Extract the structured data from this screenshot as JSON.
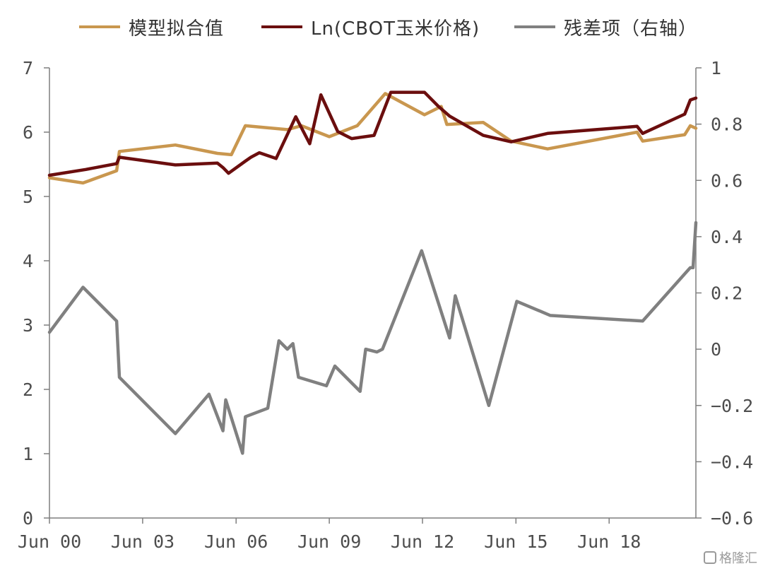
{
  "chart_data": {
    "type": "line",
    "title": "",
    "legend_position": "top",
    "x_axis": {
      "start": 2000.0,
      "end": 2023.1,
      "tick_values": [
        2000,
        2003.33,
        2006.67,
        2010,
        2013.33,
        2016.67,
        2020
      ],
      "tick_labels": [
        "Jun 00",
        "Jun 03",
        "Jun 06",
        "Jun 09",
        "Jun 12",
        "Jun 15",
        "Jun 18"
      ]
    },
    "y_left": {
      "ylim": [
        0,
        7
      ],
      "ticks": [
        "0",
        "1",
        "2",
        "3",
        "4",
        "5",
        "6",
        "7"
      ]
    },
    "y_right": {
      "ylim": [
        -0.6,
        1.0
      ],
      "ticks": [
        "-0.6",
        "-0.4",
        "-0.2",
        "0",
        "0.2",
        "0.4",
        "0.6",
        "0.8",
        "1"
      ]
    },
    "grid": false,
    "series": [
      {
        "name": "模型拟合值",
        "axis": "left",
        "color": "#c9974f",
        "x": [
          2000.0,
          2001.2,
          2002.4,
          2002.5,
          2004.5,
          2006.0,
          2006.5,
          2007.0,
          2008.5,
          2009.0,
          2010.0,
          2011.0,
          2012.0,
          2013.4,
          2014.0,
          2014.2,
          2015.5,
          2016.5,
          2017.8,
          2021.0,
          2021.2,
          2022.7,
          2022.9,
          2023.1
        ],
        "values": [
          5.29,
          5.21,
          5.4,
          5.7,
          5.8,
          5.67,
          5.65,
          6.1,
          6.04,
          6.1,
          5.93,
          6.1,
          6.6,
          6.27,
          6.4,
          6.12,
          6.15,
          5.86,
          5.74,
          6.0,
          5.86,
          5.96,
          6.1,
          6.06
        ]
      },
      {
        "name": "Ln(CBOT玉米价格)",
        "axis": "left",
        "color": "#6b0e0e",
        "x": [
          2000.0,
          2001.3,
          2002.4,
          2002.5,
          2004.5,
          2006.0,
          2006.2,
          2006.4,
          2007.0,
          2007.2,
          2007.5,
          2008.1,
          2008.8,
          2009.3,
          2009.7,
          2010.3,
          2010.8,
          2011.6,
          2012.2,
          2013.4,
          2013.9,
          2014.3,
          2015.5,
          2016.5,
          2017.8,
          2021.0,
          2021.2,
          2022.7,
          2022.9,
          2023.1
        ],
        "values": [
          5.33,
          5.42,
          5.51,
          5.61,
          5.49,
          5.52,
          5.45,
          5.36,
          5.55,
          5.61,
          5.68,
          5.59,
          6.24,
          5.82,
          6.58,
          6.01,
          5.9,
          5.95,
          6.62,
          6.62,
          6.4,
          6.25,
          5.95,
          5.85,
          5.98,
          6.09,
          5.98,
          6.28,
          6.5,
          6.53
        ]
      },
      {
        "name": "残差项（右轴）",
        "axis": "right",
        "color": "#808080",
        "x": [
          2000.0,
          2001.2,
          2002.4,
          2002.5,
          2004.5,
          2005.7,
          2006.2,
          2006.3,
          2006.9,
          2007.0,
          2007.8,
          2008.2,
          2008.5,
          2008.7,
          2008.9,
          2009.9,
          2010.2,
          2011.1,
          2011.3,
          2011.7,
          2011.9,
          2013.3,
          2014.3,
          2014.5,
          2015.7,
          2016.7,
          2017.9,
          2021.2,
          2022.9,
          2023.0,
          2023.1
        ],
        "values": [
          0.06,
          0.22,
          0.1,
          -0.1,
          -0.3,
          -0.16,
          -0.29,
          -0.18,
          -0.37,
          -0.24,
          -0.21,
          0.03,
          0.0,
          0.02,
          -0.1,
          -0.13,
          -0.06,
          -0.15,
          0.0,
          -0.01,
          0.0,
          0.35,
          0.04,
          0.19,
          -0.2,
          0.17,
          0.12,
          0.1,
          0.29,
          0.29,
          0.45
        ]
      }
    ]
  },
  "watermark": {
    "text": "格隆汇"
  }
}
